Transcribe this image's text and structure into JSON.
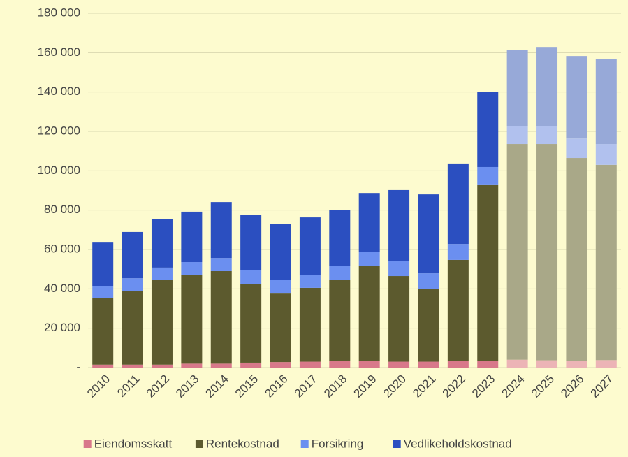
{
  "chart_data": {
    "type": "stacked_bar",
    "categories": [
      "2010",
      "2011",
      "2012",
      "2013",
      "2014",
      "2015",
      "2016",
      "2017",
      "2018",
      "2019",
      "2020",
      "2021",
      "2022",
      "2023",
      "2024",
      "2025",
      "2026",
      "2027"
    ],
    "faded_from": "2024",
    "series": [
      {
        "name": "Eiendomsskatt",
        "color": "#d8788a",
        "faded_color": "#ecb4b6",
        "values": [
          1500,
          1500,
          1500,
          2000,
          2000,
          2500,
          2800,
          3000,
          3200,
          3200,
          3000,
          3000,
          3200,
          3500,
          4000,
          3700,
          3500,
          3800
        ]
      },
      {
        "name": "Rentekostnad",
        "color": "#5c5a2e",
        "faded_color": "#a9a888",
        "values": [
          34000,
          37500,
          42900,
          45200,
          47000,
          40100,
          34800,
          37500,
          41200,
          48600,
          43500,
          36800,
          51500,
          89200,
          109600,
          109900,
          103000,
          99200
        ]
      },
      {
        "name": "Forsikring",
        "color": "#6b8ff0",
        "faded_color": "#b1c1ee",
        "values": [
          5700,
          6400,
          6400,
          6400,
          6700,
          7100,
          6800,
          6700,
          7100,
          7100,
          7500,
          8100,
          8100,
          9200,
          9200,
          9200,
          9900,
          10600
        ]
      },
      {
        "name": "Vedlikeholdskostnad",
        "color": "#2b4fc0",
        "faded_color": "#97a9d8",
        "values": [
          22300,
          23500,
          24800,
          25600,
          28400,
          27700,
          28700,
          29100,
          28700,
          29800,
          36200,
          40100,
          40900,
          38300,
          38400,
          40100,
          41900,
          43300
        ]
      }
    ],
    "ylim": [
      0,
      180000
    ],
    "yticks": [
      {
        "value": 0,
        "label": "-"
      },
      {
        "value": 20000,
        "label": "20 000"
      },
      {
        "value": 40000,
        "label": "40 000"
      },
      {
        "value": 60000,
        "label": "60 000"
      },
      {
        "value": 80000,
        "label": "80 000"
      },
      {
        "value": 100000,
        "label": "100 000"
      },
      {
        "value": 120000,
        "label": "120 000"
      },
      {
        "value": 140000,
        "label": "140 000"
      },
      {
        "value": 160000,
        "label": "160 000"
      },
      {
        "value": 180000,
        "label": "180 000"
      }
    ],
    "grid": true,
    "legend": "bottom"
  }
}
